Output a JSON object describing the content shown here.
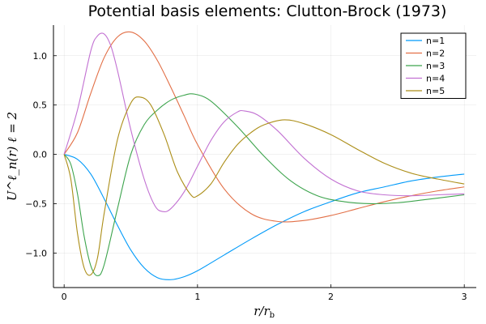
{
  "chart_data": {
    "type": "line",
    "title": "Potential basis elements: Clutton-Brock (1973)",
    "xlabel": "r/r_b",
    "ylabel": "U^ℓ_n(r)   ℓ = 2",
    "xlim": [
      -0.08,
      3.09
    ],
    "ylim": [
      -1.35,
      1.31
    ],
    "x_ticks": [
      0,
      1,
      2,
      3
    ],
    "x_tick_labels": [
      "0",
      "1",
      "2",
      "3"
    ],
    "y_ticks": [
      -1.0,
      -0.5,
      0.0,
      0.5,
      1.0
    ],
    "y_tick_labels": [
      "−1.0",
      "−0.5",
      "0.0",
      "0.5",
      "1.0"
    ],
    "grid": true,
    "legend_position": "top-right",
    "series": [
      {
        "name": "n=1",
        "color": "#009af9",
        "points": [
          [
            0,
            0
          ],
          [
            0.1,
            -0.05
          ],
          [
            0.2,
            -0.2
          ],
          [
            0.3,
            -0.45
          ],
          [
            0.4,
            -0.72
          ],
          [
            0.5,
            -0.97
          ],
          [
            0.6,
            -1.15
          ],
          [
            0.7,
            -1.25
          ],
          [
            0.8,
            -1.27
          ],
          [
            0.9,
            -1.24
          ],
          [
            1.0,
            -1.18
          ],
          [
            1.2,
            -1.02
          ],
          [
            1.4,
            -0.86
          ],
          [
            1.6,
            -0.71
          ],
          [
            1.8,
            -0.58
          ],
          [
            2.0,
            -0.48
          ],
          [
            2.2,
            -0.39
          ],
          [
            2.4,
            -0.33
          ],
          [
            2.6,
            -0.27
          ],
          [
            2.8,
            -0.23
          ],
          [
            3.0,
            -0.2
          ]
        ]
      },
      {
        "name": "n=2",
        "color": "#e26f46",
        "points": [
          [
            0,
            0
          ],
          [
            0.1,
            0.22
          ],
          [
            0.2,
            0.62
          ],
          [
            0.3,
            0.98
          ],
          [
            0.4,
            1.19
          ],
          [
            0.5,
            1.24
          ],
          [
            0.6,
            1.15
          ],
          [
            0.7,
            0.95
          ],
          [
            0.8,
            0.68
          ],
          [
            0.9,
            0.39
          ],
          [
            1.0,
            0.1
          ],
          [
            1.2,
            -0.35
          ],
          [
            1.4,
            -0.6
          ],
          [
            1.6,
            -0.68
          ],
          [
            1.8,
            -0.67
          ],
          [
            2.0,
            -0.62
          ],
          [
            2.2,
            -0.55
          ],
          [
            2.4,
            -0.48
          ],
          [
            2.6,
            -0.42
          ],
          [
            2.8,
            -0.37
          ],
          [
            3.0,
            -0.33
          ]
        ]
      },
      {
        "name": "n=3",
        "color": "#3da44d",
        "points": [
          [
            0,
            0
          ],
          [
            0.05,
            -0.1
          ],
          [
            0.1,
            -0.4
          ],
          [
            0.15,
            -0.83
          ],
          [
            0.2,
            -1.13
          ],
          [
            0.25,
            -1.23
          ],
          [
            0.3,
            -1.12
          ],
          [
            0.4,
            -0.55
          ],
          [
            0.5,
            0.0
          ],
          [
            0.6,
            0.3
          ],
          [
            0.7,
            0.45
          ],
          [
            0.8,
            0.55
          ],
          [
            0.9,
            0.6
          ],
          [
            0.98,
            0.61
          ],
          [
            1.1,
            0.54
          ],
          [
            1.3,
            0.28
          ],
          [
            1.5,
            -0.02
          ],
          [
            1.7,
            -0.27
          ],
          [
            1.9,
            -0.42
          ],
          [
            2.1,
            -0.48
          ],
          [
            2.3,
            -0.5
          ],
          [
            2.5,
            -0.49
          ],
          [
            2.7,
            -0.46
          ],
          [
            3.0,
            -0.41
          ]
        ]
      },
      {
        "name": "n=4",
        "color": "#c271d2",
        "points": [
          [
            0,
            0
          ],
          [
            0.1,
            0.45
          ],
          [
            0.2,
            1.05
          ],
          [
            0.25,
            1.2
          ],
          [
            0.3,
            1.22
          ],
          [
            0.35,
            1.1
          ],
          [
            0.4,
            0.85
          ],
          [
            0.5,
            0.25
          ],
          [
            0.6,
            -0.25
          ],
          [
            0.68,
            -0.52
          ],
          [
            0.74,
            -0.58
          ],
          [
            0.8,
            -0.55
          ],
          [
            0.9,
            -0.38
          ],
          [
            1.0,
            -0.12
          ],
          [
            1.1,
            0.14
          ],
          [
            1.2,
            0.33
          ],
          [
            1.3,
            0.43
          ],
          [
            1.35,
            0.44
          ],
          [
            1.45,
            0.4
          ],
          [
            1.6,
            0.24
          ],
          [
            1.8,
            -0.04
          ],
          [
            2.0,
            -0.25
          ],
          [
            2.2,
            -0.37
          ],
          [
            2.4,
            -0.41
          ],
          [
            2.6,
            -0.42
          ],
          [
            2.8,
            -0.41
          ],
          [
            3.0,
            -0.4
          ]
        ]
      },
      {
        "name": "n=5",
        "color": "#ac8e18",
        "points": [
          [
            0,
            0
          ],
          [
            0.05,
            -0.25
          ],
          [
            0.1,
            -0.8
          ],
          [
            0.15,
            -1.15
          ],
          [
            0.2,
            -1.22
          ],
          [
            0.25,
            -1.05
          ],
          [
            0.3,
            -0.6
          ],
          [
            0.4,
            0.15
          ],
          [
            0.5,
            0.52
          ],
          [
            0.57,
            0.58
          ],
          [
            0.65,
            0.5
          ],
          [
            0.75,
            0.2
          ],
          [
            0.85,
            -0.18
          ],
          [
            0.95,
            -0.41
          ],
          [
            1.0,
            -0.42
          ],
          [
            1.1,
            -0.3
          ],
          [
            1.2,
            -0.08
          ],
          [
            1.3,
            0.1
          ],
          [
            1.4,
            0.22
          ],
          [
            1.5,
            0.3
          ],
          [
            1.65,
            0.35
          ],
          [
            1.8,
            0.31
          ],
          [
            2.0,
            0.2
          ],
          [
            2.2,
            0.05
          ],
          [
            2.4,
            -0.09
          ],
          [
            2.6,
            -0.19
          ],
          [
            2.8,
            -0.25
          ],
          [
            3.0,
            -0.3
          ]
        ]
      }
    ]
  }
}
